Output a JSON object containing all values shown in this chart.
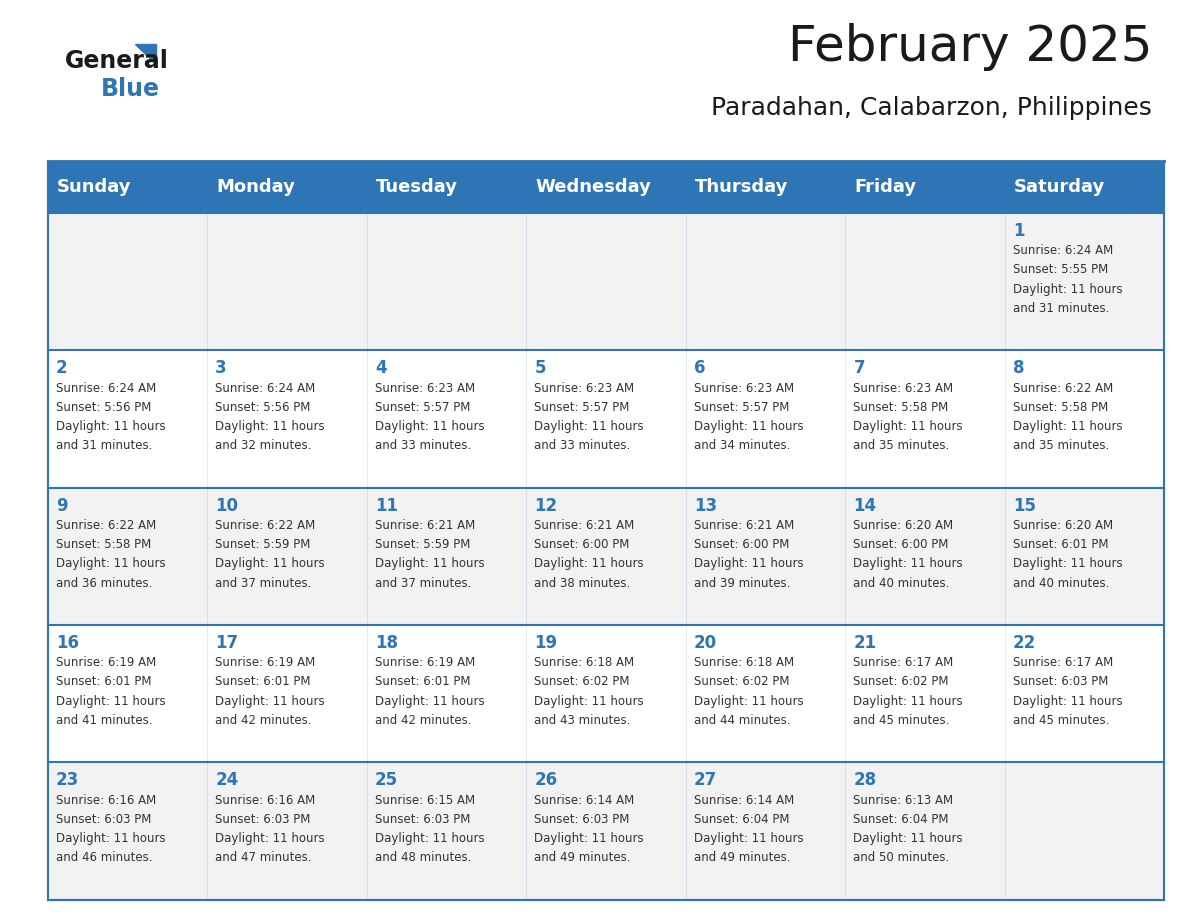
{
  "title": "February 2025",
  "subtitle": "Paradahan, Calabarzon, Philippines",
  "header_bg_color": "#2E75B6",
  "header_text_color": "#FFFFFF",
  "header_font_size": 13,
  "day_names": [
    "Sunday",
    "Monday",
    "Tuesday",
    "Wednesday",
    "Thursday",
    "Friday",
    "Saturday"
  ],
  "title_font_size": 36,
  "subtitle_font_size": 18,
  "title_color": "#1a1a1a",
  "subtitle_color": "#1a1a1a",
  "cell_bg_color": "#FFFFFF",
  "alt_cell_bg_color": "#F2F2F2",
  "border_color": "#2E75B6",
  "day_number_color": "#2E75B6",
  "day_number_font_size": 12,
  "info_font_size": 8.5,
  "info_color": "#333333",
  "calendar_data": [
    [
      null,
      null,
      null,
      null,
      null,
      null,
      {
        "day": 1,
        "sunrise": "6:24 AM",
        "sunset": "5:55 PM",
        "daylight": "11 hours and 31 minutes."
      }
    ],
    [
      {
        "day": 2,
        "sunrise": "6:24 AM",
        "sunset": "5:56 PM",
        "daylight": "11 hours and 31 minutes."
      },
      {
        "day": 3,
        "sunrise": "6:24 AM",
        "sunset": "5:56 PM",
        "daylight": "11 hours and 32 minutes."
      },
      {
        "day": 4,
        "sunrise": "6:23 AM",
        "sunset": "5:57 PM",
        "daylight": "11 hours and 33 minutes."
      },
      {
        "day": 5,
        "sunrise": "6:23 AM",
        "sunset": "5:57 PM",
        "daylight": "11 hours and 33 minutes."
      },
      {
        "day": 6,
        "sunrise": "6:23 AM",
        "sunset": "5:57 PM",
        "daylight": "11 hours and 34 minutes."
      },
      {
        "day": 7,
        "sunrise": "6:23 AM",
        "sunset": "5:58 PM",
        "daylight": "11 hours and 35 minutes."
      },
      {
        "day": 8,
        "sunrise": "6:22 AM",
        "sunset": "5:58 PM",
        "daylight": "11 hours and 35 minutes."
      }
    ],
    [
      {
        "day": 9,
        "sunrise": "6:22 AM",
        "sunset": "5:58 PM",
        "daylight": "11 hours and 36 minutes."
      },
      {
        "day": 10,
        "sunrise": "6:22 AM",
        "sunset": "5:59 PM",
        "daylight": "11 hours and 37 minutes."
      },
      {
        "day": 11,
        "sunrise": "6:21 AM",
        "sunset": "5:59 PM",
        "daylight": "11 hours and 37 minutes."
      },
      {
        "day": 12,
        "sunrise": "6:21 AM",
        "sunset": "6:00 PM",
        "daylight": "11 hours and 38 minutes."
      },
      {
        "day": 13,
        "sunrise": "6:21 AM",
        "sunset": "6:00 PM",
        "daylight": "11 hours and 39 minutes."
      },
      {
        "day": 14,
        "sunrise": "6:20 AM",
        "sunset": "6:00 PM",
        "daylight": "11 hours and 40 minutes."
      },
      {
        "day": 15,
        "sunrise": "6:20 AM",
        "sunset": "6:01 PM",
        "daylight": "11 hours and 40 minutes."
      }
    ],
    [
      {
        "day": 16,
        "sunrise": "6:19 AM",
        "sunset": "6:01 PM",
        "daylight": "11 hours and 41 minutes."
      },
      {
        "day": 17,
        "sunrise": "6:19 AM",
        "sunset": "6:01 PM",
        "daylight": "11 hours and 42 minutes."
      },
      {
        "day": 18,
        "sunrise": "6:19 AM",
        "sunset": "6:01 PM",
        "daylight": "11 hours and 42 minutes."
      },
      {
        "day": 19,
        "sunrise": "6:18 AM",
        "sunset": "6:02 PM",
        "daylight": "11 hours and 43 minutes."
      },
      {
        "day": 20,
        "sunrise": "6:18 AM",
        "sunset": "6:02 PM",
        "daylight": "11 hours and 44 minutes."
      },
      {
        "day": 21,
        "sunrise": "6:17 AM",
        "sunset": "6:02 PM",
        "daylight": "11 hours and 45 minutes."
      },
      {
        "day": 22,
        "sunrise": "6:17 AM",
        "sunset": "6:03 PM",
        "daylight": "11 hours and 45 minutes."
      }
    ],
    [
      {
        "day": 23,
        "sunrise": "6:16 AM",
        "sunset": "6:03 PM",
        "daylight": "11 hours and 46 minutes."
      },
      {
        "day": 24,
        "sunrise": "6:16 AM",
        "sunset": "6:03 PM",
        "daylight": "11 hours and 47 minutes."
      },
      {
        "day": 25,
        "sunrise": "6:15 AM",
        "sunset": "6:03 PM",
        "daylight": "11 hours and 48 minutes."
      },
      {
        "day": 26,
        "sunrise": "6:14 AM",
        "sunset": "6:03 PM",
        "daylight": "11 hours and 49 minutes."
      },
      {
        "day": 27,
        "sunrise": "6:14 AM",
        "sunset": "6:04 PM",
        "daylight": "11 hours and 49 minutes."
      },
      {
        "day": 28,
        "sunrise": "6:13 AM",
        "sunset": "6:04 PM",
        "daylight": "11 hours and 50 minutes."
      },
      null
    ]
  ],
  "logo_text_general": "General",
  "logo_text_blue": "Blue"
}
